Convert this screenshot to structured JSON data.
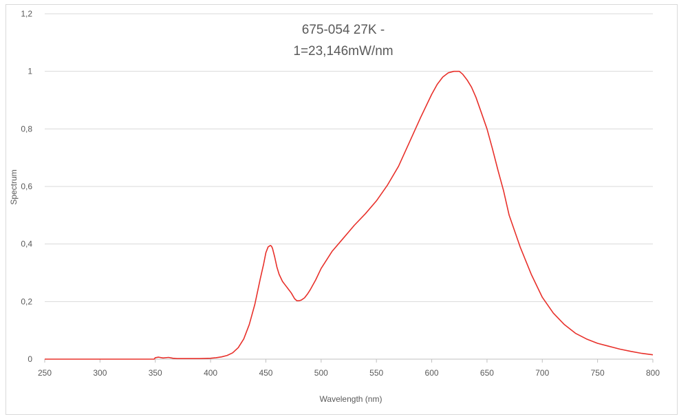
{
  "chart_data": {
    "type": "line",
    "title": [
      "675-054 27K -",
      "1=23,146mW/nm"
    ],
    "xlabel": "Wavelength (nm)",
    "ylabel": "Spectrum",
    "xlim": [
      250,
      800
    ],
    "ylim": [
      0,
      1.2
    ],
    "xticks": [
      250,
      300,
      350,
      400,
      450,
      500,
      550,
      600,
      650,
      700,
      750,
      800
    ],
    "xtick_labels": [
      "250",
      "300",
      "350",
      "400",
      "450",
      "500",
      "550",
      "600",
      "650",
      "700",
      "750",
      "800"
    ],
    "yticks": [
      0,
      0.2,
      0.4,
      0.6,
      0.8,
      1.0,
      1.2
    ],
    "ytick_labels": [
      "0",
      "0,2",
      "0,4",
      "0,6",
      "0,8",
      "1",
      "1,2"
    ],
    "grid": "horizontal",
    "legend": "none",
    "series": [
      {
        "color": "#e8302a",
        "x": [
          250,
          300,
          349,
          350,
          353,
          357,
          362,
          366,
          370,
          380,
          390,
          400,
          405,
          410,
          415,
          420,
          425,
          430,
          435,
          440,
          445,
          448,
          450,
          452,
          454,
          455,
          456,
          458,
          460,
          462,
          465,
          468,
          470,
          473,
          476,
          478,
          480,
          482,
          485,
          488,
          490,
          495,
          500,
          510,
          520,
          530,
          540,
          550,
          560,
          570,
          580,
          590,
          600,
          605,
          610,
          615,
          620,
          622,
          625,
          628,
          632,
          636,
          640,
          645,
          650,
          655,
          660,
          665,
          670,
          680,
          690,
          700,
          710,
          720,
          730,
          740,
          750,
          760,
          770,
          780,
          790,
          800
        ],
        "y": [
          0,
          0,
          0,
          0.005,
          0.007,
          0.004,
          0.006,
          0.003,
          0.002,
          0.002,
          0.002,
          0.003,
          0.005,
          0.008,
          0.013,
          0.022,
          0.04,
          0.07,
          0.12,
          0.19,
          0.28,
          0.33,
          0.37,
          0.39,
          0.395,
          0.393,
          0.385,
          0.355,
          0.32,
          0.295,
          0.27,
          0.255,
          0.245,
          0.23,
          0.21,
          0.203,
          0.203,
          0.205,
          0.213,
          0.228,
          0.24,
          0.275,
          0.315,
          0.375,
          0.42,
          0.465,
          0.505,
          0.55,
          0.605,
          0.67,
          0.755,
          0.84,
          0.92,
          0.955,
          0.98,
          0.995,
          1.0,
          1.0,
          1.0,
          0.99,
          0.97,
          0.945,
          0.91,
          0.855,
          0.8,
          0.73,
          0.655,
          0.585,
          0.5,
          0.39,
          0.295,
          0.215,
          0.16,
          0.12,
          0.09,
          0.07,
          0.055,
          0.045,
          0.035,
          0.027,
          0.02,
          0.015
        ]
      }
    ]
  }
}
